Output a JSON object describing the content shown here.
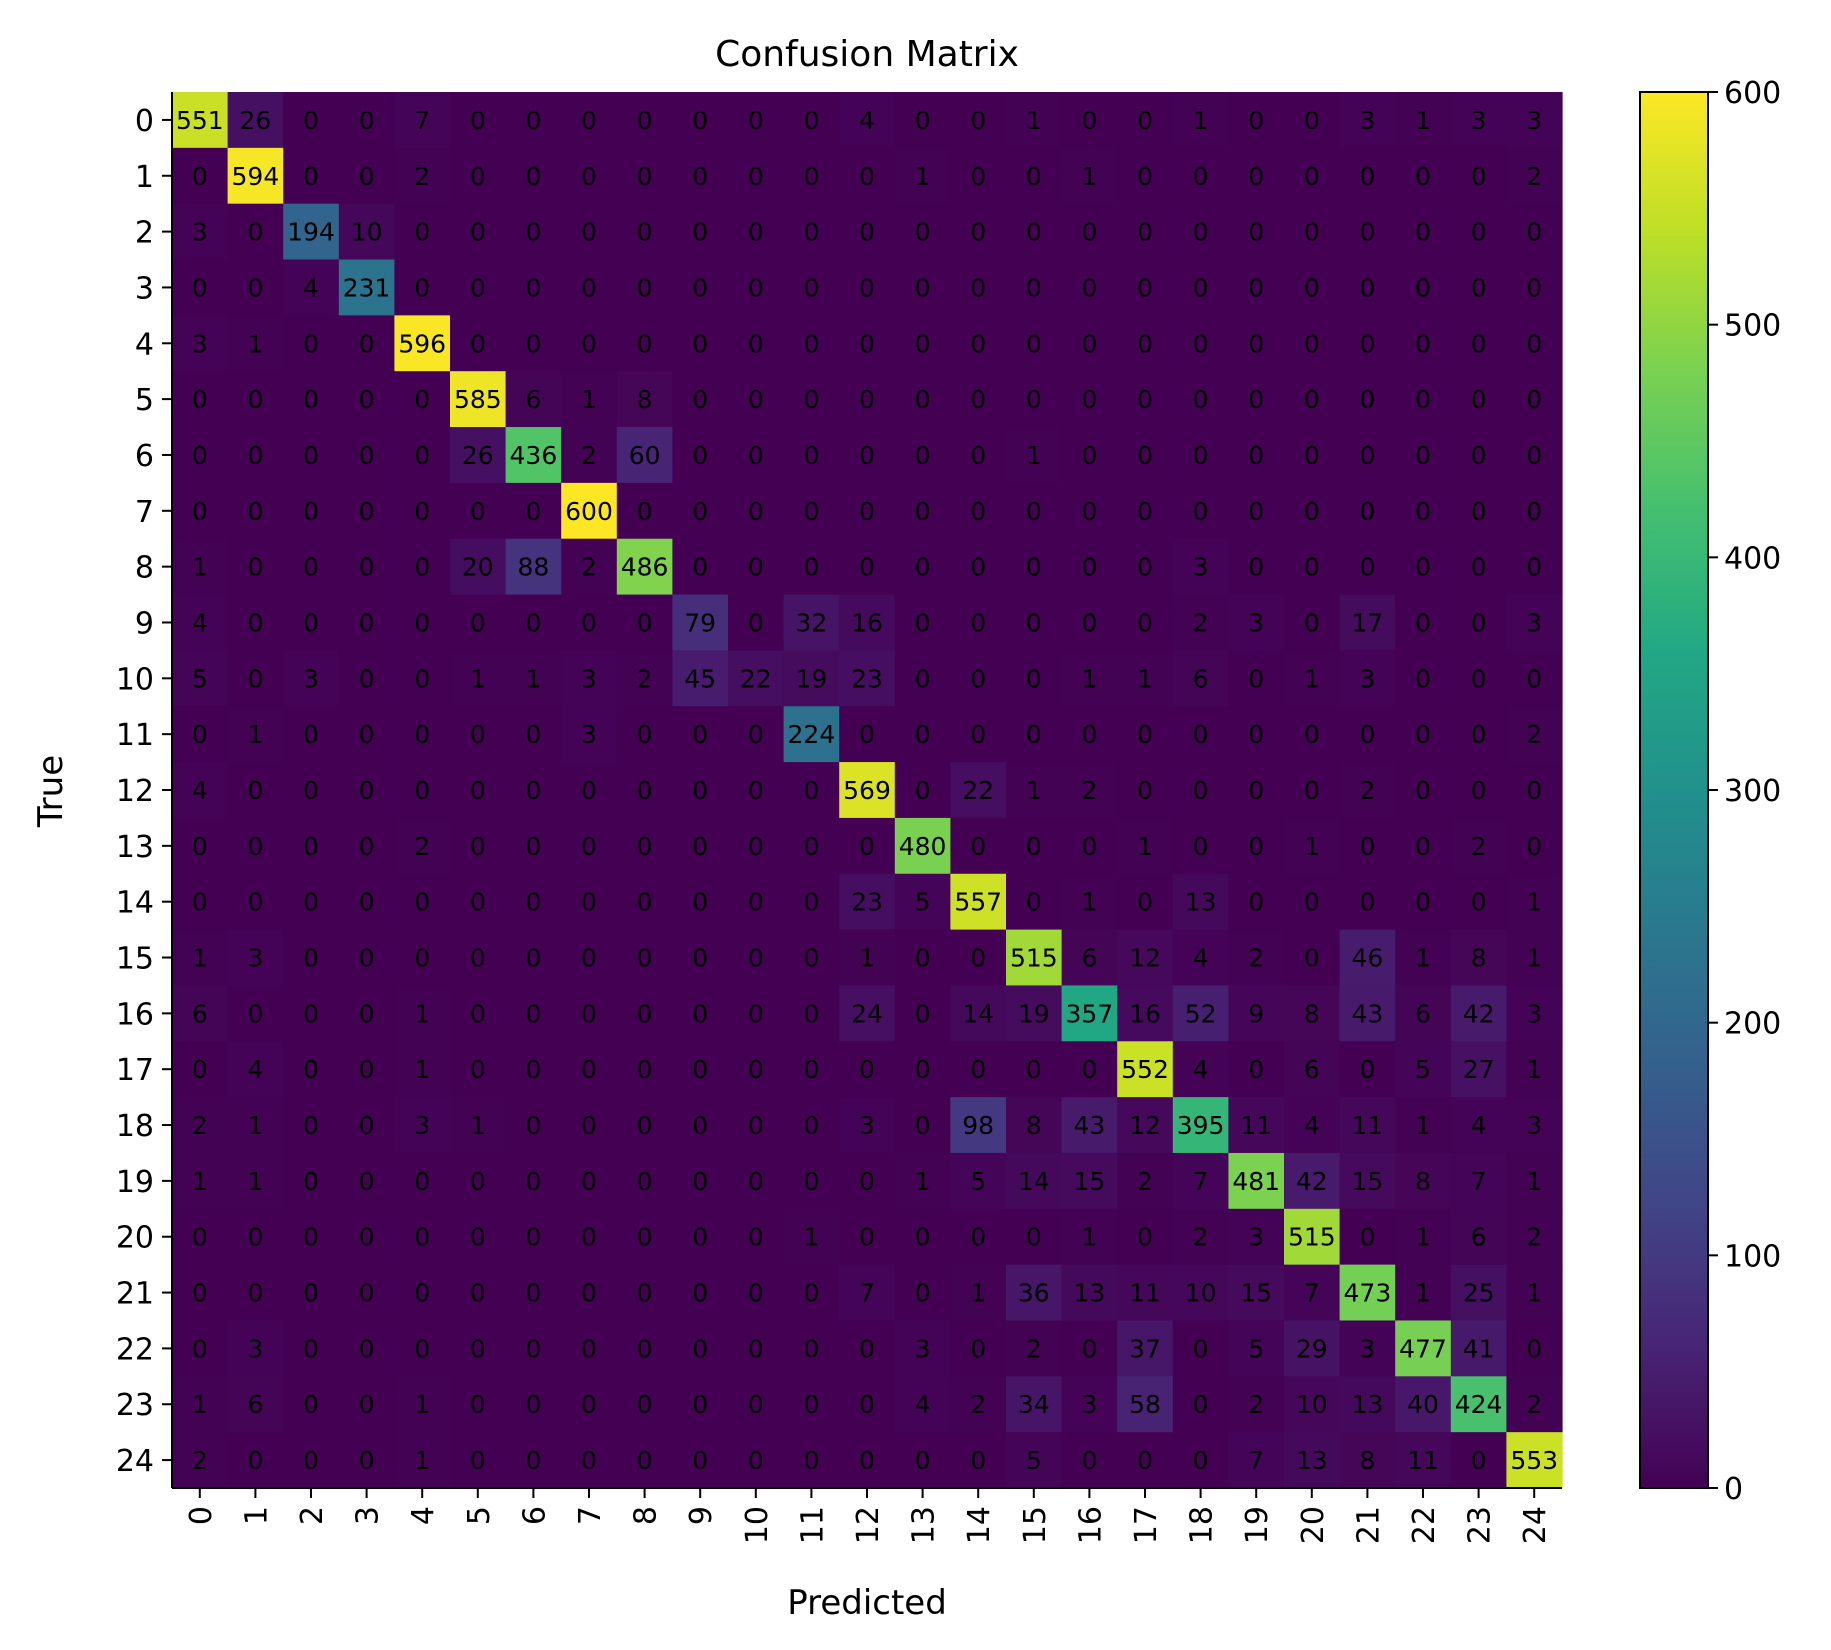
{
  "chart_data": {
    "type": "heatmap",
    "title": "Confusion Matrix",
    "xlabel": "Predicted",
    "ylabel": "True",
    "x_labels": [
      "0",
      "1",
      "2",
      "3",
      "4",
      "5",
      "6",
      "7",
      "8",
      "9",
      "10",
      "11",
      "12",
      "13",
      "14",
      "15",
      "16",
      "17",
      "18",
      "19",
      "20",
      "21",
      "22",
      "23",
      "24"
    ],
    "y_labels": [
      "0",
      "1",
      "2",
      "3",
      "4",
      "5",
      "6",
      "7",
      "8",
      "9",
      "10",
      "11",
      "12",
      "13",
      "14",
      "15",
      "16",
      "17",
      "18",
      "19",
      "20",
      "21",
      "22",
      "23",
      "24"
    ],
    "matrix": [
      [
        551,
        26,
        0,
        0,
        7,
        0,
        0,
        0,
        0,
        0,
        0,
        0,
        4,
        0,
        0,
        1,
        0,
        0,
        1,
        0,
        0,
        3,
        1,
        3,
        3
      ],
      [
        0,
        594,
        0,
        0,
        2,
        0,
        0,
        0,
        0,
        0,
        0,
        0,
        0,
        1,
        0,
        0,
        1,
        0,
        0,
        0,
        0,
        0,
        0,
        0,
        2
      ],
      [
        3,
        0,
        194,
        10,
        0,
        0,
        0,
        0,
        0,
        0,
        0,
        0,
        0,
        0,
        0,
        0,
        0,
        0,
        0,
        0,
        0,
        0,
        0,
        0,
        0
      ],
      [
        0,
        0,
        4,
        231,
        0,
        0,
        0,
        0,
        0,
        0,
        0,
        0,
        0,
        0,
        0,
        0,
        0,
        0,
        0,
        0,
        0,
        0,
        0,
        0,
        0
      ],
      [
        3,
        1,
        0,
        0,
        596,
        0,
        0,
        0,
        0,
        0,
        0,
        0,
        0,
        0,
        0,
        0,
        0,
        0,
        0,
        0,
        0,
        0,
        0,
        0,
        0
      ],
      [
        0,
        0,
        0,
        0,
        0,
        585,
        6,
        1,
        8,
        0,
        0,
        0,
        0,
        0,
        0,
        0,
        0,
        0,
        0,
        0,
        0,
        0,
        0,
        0,
        0
      ],
      [
        0,
        0,
        0,
        0,
        0,
        26,
        436,
        2,
        60,
        0,
        0,
        0,
        0,
        0,
        0,
        1,
        0,
        0,
        0,
        0,
        0,
        0,
        0,
        0,
        0
      ],
      [
        0,
        0,
        0,
        0,
        0,
        0,
        0,
        600,
        0,
        0,
        0,
        0,
        0,
        0,
        0,
        0,
        0,
        0,
        0,
        0,
        0,
        0,
        0,
        0,
        0
      ],
      [
        1,
        0,
        0,
        0,
        0,
        20,
        88,
        2,
        486,
        0,
        0,
        0,
        0,
        0,
        0,
        0,
        0,
        0,
        3,
        0,
        0,
        0,
        0,
        0,
        0
      ],
      [
        4,
        0,
        0,
        0,
        0,
        0,
        0,
        0,
        0,
        79,
        0,
        32,
        16,
        0,
        0,
        0,
        0,
        0,
        2,
        3,
        0,
        17,
        0,
        0,
        3
      ],
      [
        5,
        0,
        3,
        0,
        0,
        1,
        1,
        3,
        2,
        45,
        22,
        19,
        23,
        0,
        0,
        0,
        1,
        1,
        6,
        0,
        1,
        3,
        0,
        0,
        0
      ],
      [
        0,
        1,
        0,
        0,
        0,
        0,
        0,
        3,
        0,
        0,
        0,
        224,
        0,
        0,
        0,
        0,
        0,
        0,
        0,
        0,
        0,
        0,
        0,
        0,
        2
      ],
      [
        4,
        0,
        0,
        0,
        0,
        0,
        0,
        0,
        0,
        0,
        0,
        0,
        569,
        0,
        22,
        1,
        2,
        0,
        0,
        0,
        0,
        2,
        0,
        0,
        0
      ],
      [
        0,
        0,
        0,
        0,
        2,
        0,
        0,
        0,
        0,
        0,
        0,
        0,
        0,
        480,
        0,
        0,
        0,
        1,
        0,
        0,
        1,
        0,
        0,
        2,
        0
      ],
      [
        0,
        0,
        0,
        0,
        0,
        0,
        0,
        0,
        0,
        0,
        0,
        0,
        23,
        5,
        557,
        0,
        1,
        0,
        13,
        0,
        0,
        0,
        0,
        0,
        1
      ],
      [
        1,
        3,
        0,
        0,
        0,
        0,
        0,
        0,
        0,
        0,
        0,
        0,
        1,
        0,
        0,
        515,
        6,
        12,
        4,
        2,
        0,
        46,
        1,
        8,
        1
      ],
      [
        6,
        0,
        0,
        0,
        1,
        0,
        0,
        0,
        0,
        0,
        0,
        0,
        24,
        0,
        14,
        19,
        357,
        16,
        52,
        9,
        8,
        43,
        6,
        42,
        3
      ],
      [
        0,
        4,
        0,
        0,
        1,
        0,
        0,
        0,
        0,
        0,
        0,
        0,
        0,
        0,
        0,
        0,
        0,
        552,
        4,
        0,
        6,
        0,
        5,
        27,
        1
      ],
      [
        2,
        1,
        0,
        0,
        3,
        1,
        0,
        0,
        0,
        0,
        0,
        0,
        3,
        0,
        98,
        8,
        43,
        12,
        395,
        11,
        4,
        11,
        1,
        4,
        3
      ],
      [
        1,
        1,
        0,
        0,
        0,
        0,
        0,
        0,
        0,
        0,
        0,
        0,
        0,
        1,
        5,
        14,
        15,
        2,
        7,
        481,
        42,
        15,
        8,
        7,
        1
      ],
      [
        0,
        0,
        0,
        0,
        0,
        0,
        0,
        0,
        0,
        0,
        0,
        1,
        0,
        0,
        0,
        0,
        1,
        0,
        2,
        3,
        515,
        0,
        1,
        6,
        2
      ],
      [
        0,
        0,
        0,
        0,
        0,
        0,
        0,
        0,
        0,
        0,
        0,
        0,
        7,
        0,
        1,
        36,
        13,
        11,
        10,
        15,
        7,
        473,
        1,
        25,
        1
      ],
      [
        0,
        3,
        0,
        0,
        0,
        0,
        0,
        0,
        0,
        0,
        0,
        0,
        0,
        3,
        0,
        2,
        0,
        37,
        0,
        5,
        29,
        3,
        477,
        41,
        0
      ],
      [
        1,
        6,
        0,
        0,
        1,
        0,
        0,
        0,
        0,
        0,
        0,
        0,
        0,
        4,
        2,
        34,
        3,
        58,
        0,
        2,
        10,
        13,
        40,
        424,
        2
      ],
      [
        2,
        0,
        0,
        0,
        1,
        0,
        0,
        0,
        0,
        0,
        0,
        0,
        0,
        0,
        0,
        5,
        0,
        0,
        0,
        7,
        13,
        8,
        11,
        0,
        553
      ]
    ],
    "vmin": 0,
    "vmax": 600,
    "colormap": "viridis",
    "colorbar_ticks": [
      0,
      100,
      200,
      300,
      400,
      500,
      600
    ],
    "annotated": true
  }
}
